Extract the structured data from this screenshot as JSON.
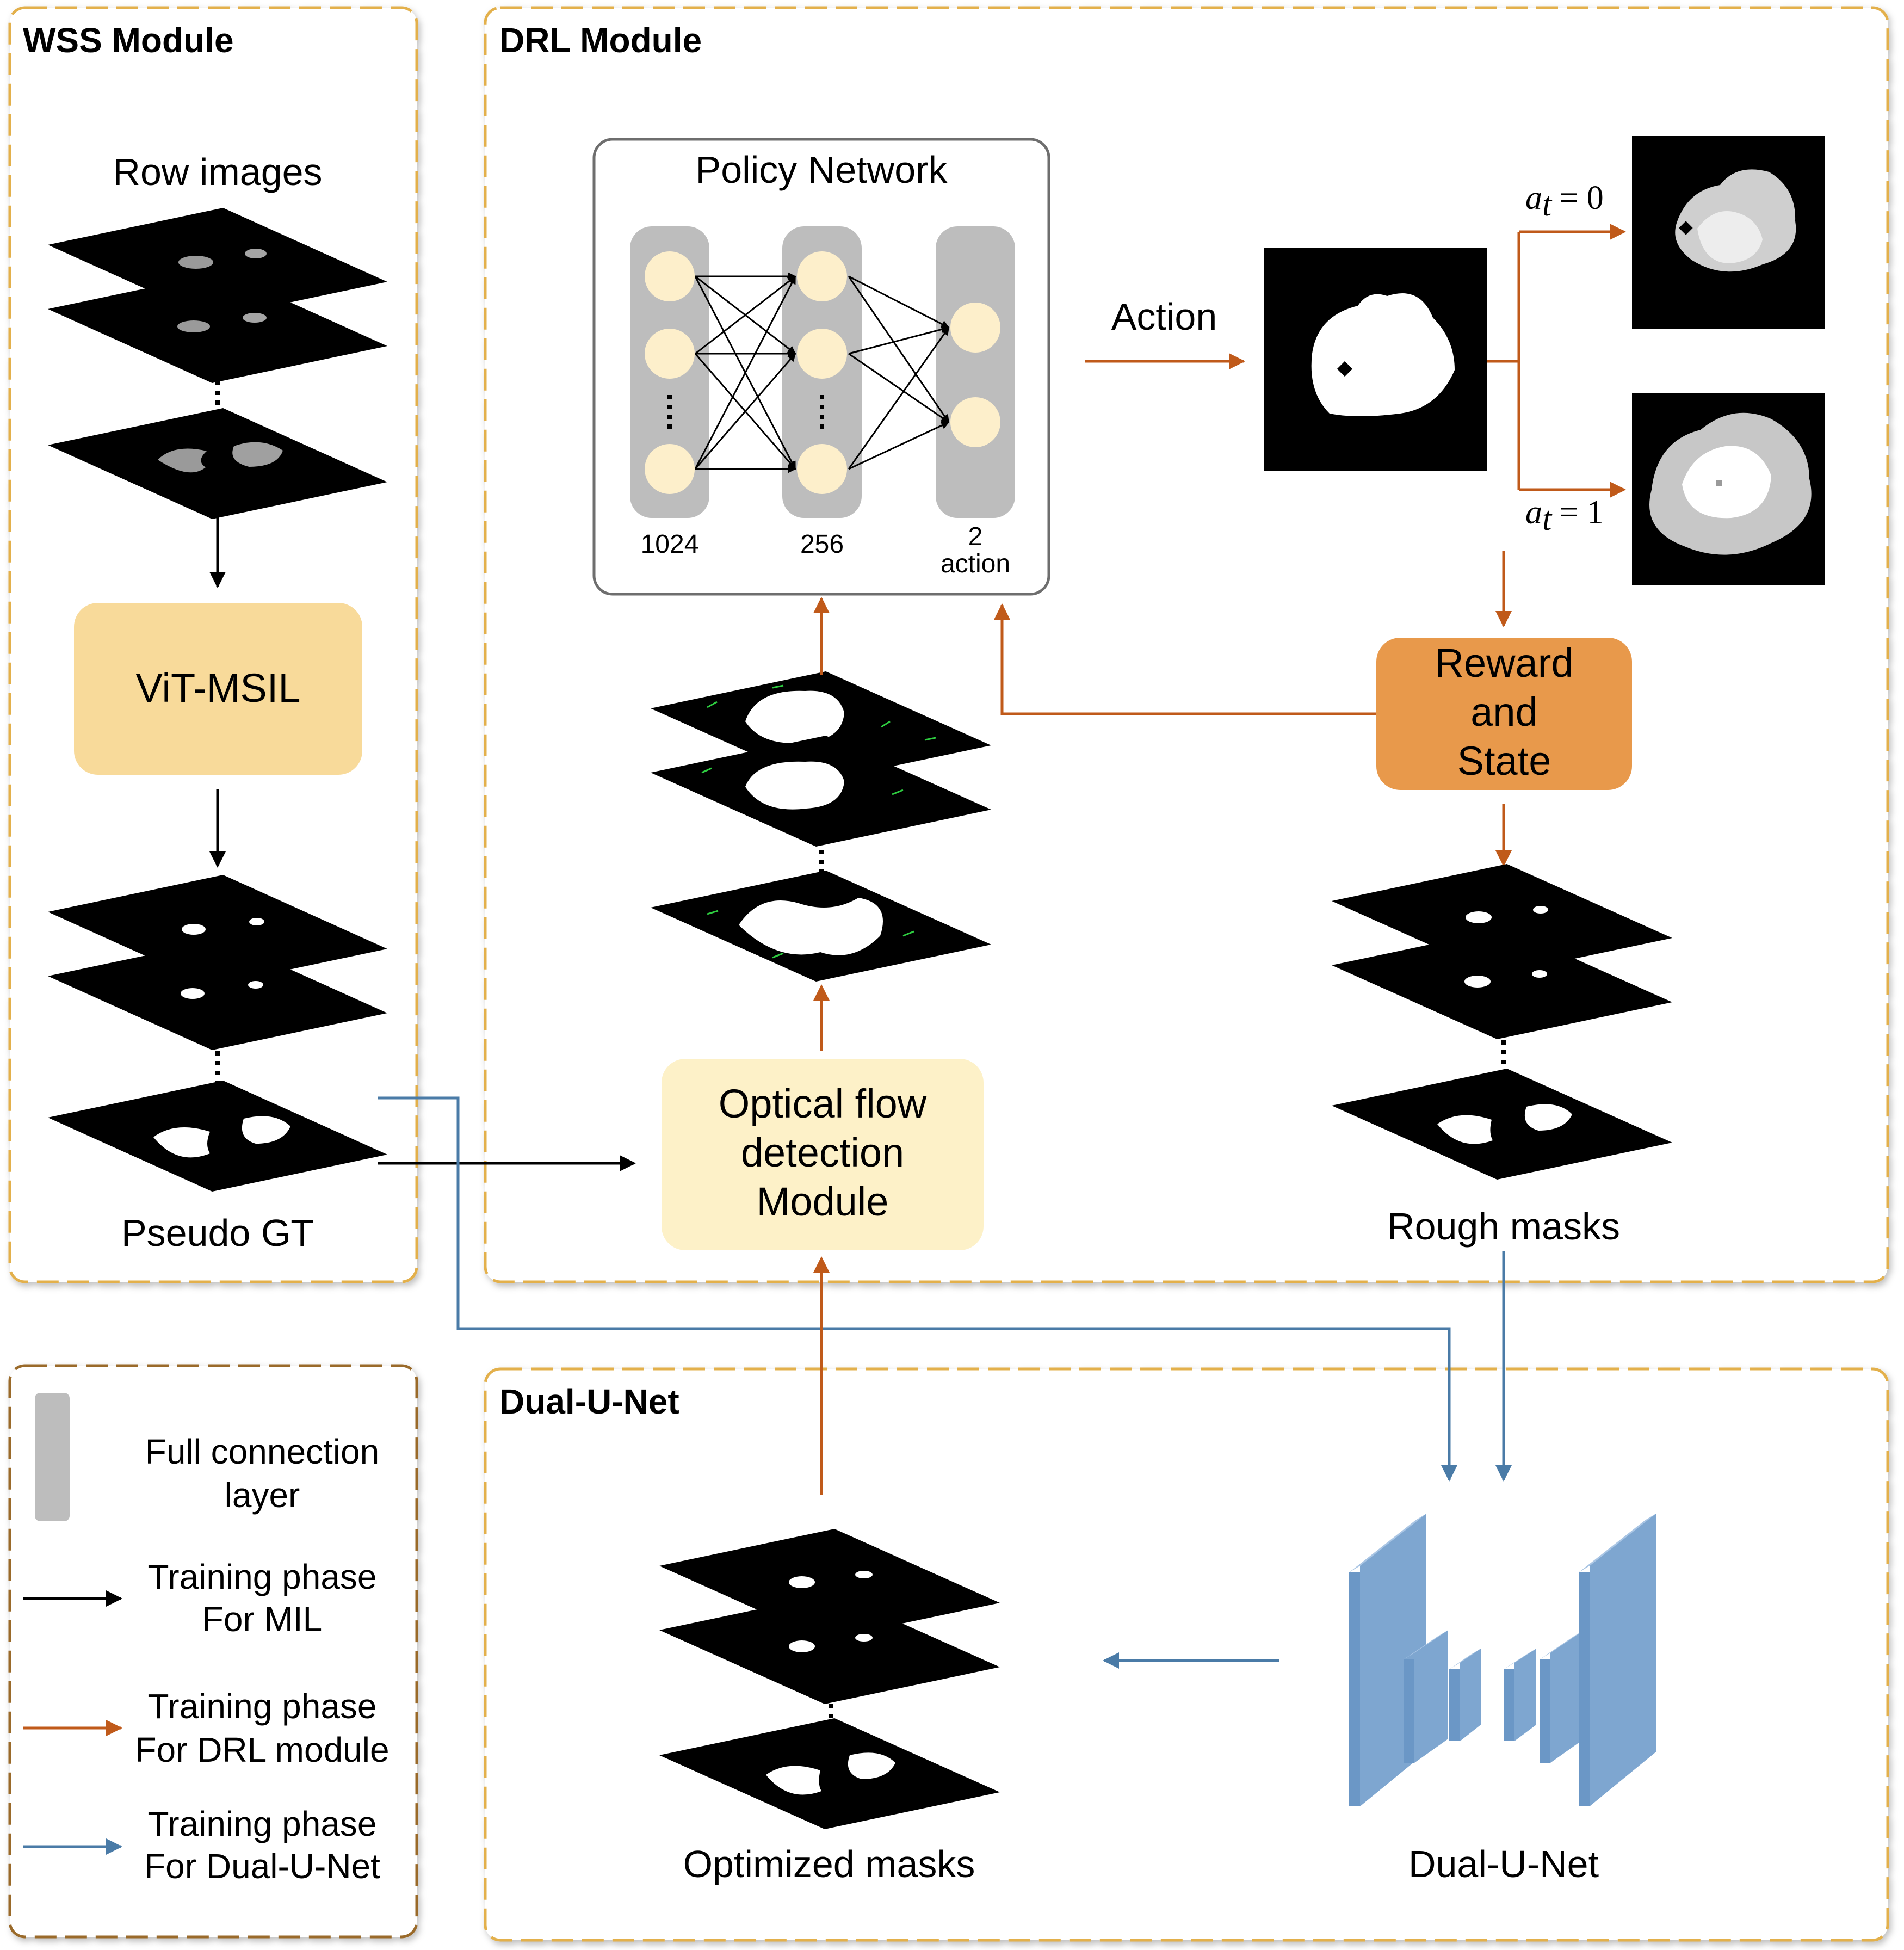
{
  "modules": {
    "wss": {
      "title": "WSS Module"
    },
    "drl": {
      "title": "DRL Module"
    },
    "dual": {
      "title": "Dual-U-Net"
    }
  },
  "wss": {
    "row_images_label": "Row images",
    "vit_label": "ViT-MSIL",
    "pseudo_gt_label": "Pseudo GT"
  },
  "policy_network": {
    "title": "Policy Network",
    "layers": [
      "1024",
      "256",
      "2",
      "action"
    ]
  },
  "action_label": "Action",
  "actions": {
    "a0": "a",
    "a0_sub": "t",
    "a0_val": "= 0",
    "a1": "a",
    "a1_sub": "t",
    "a1_val": "= 1"
  },
  "reward_state": {
    "line1": "Reward",
    "line2": "and",
    "line3": "State"
  },
  "rough_masks_label": "Rough masks",
  "optical_flow": {
    "line1": "Optical flow",
    "line2": "detection",
    "line3": "Module"
  },
  "optimized_masks_label": "Optimized masks",
  "dual_unet_label": "Dual-U-Net",
  "legend": {
    "fc_line1": "Full connection",
    "fc_line2": "layer",
    "mil_line1": "Training phase",
    "mil_line2": "For MIL",
    "drl_line1": "Training phase",
    "drl_line2": "For DRL module",
    "dual_line1": "Training phase",
    "dual_line2": "For Dual-U-Net"
  },
  "colors": {
    "frame": "#E3B04B",
    "legend_frame": "#9A6A2A",
    "black_arrow": "#000000",
    "orange_arrow": "#C05A1A",
    "blue_arrow": "#4A7BA7",
    "vit_fill": "#F8DA9A",
    "optical_fill": "#FDF1C8",
    "reward_fill": "#E8994B",
    "node_fill": "#FDEFCB",
    "fc_fill": "#BDBDBD",
    "unet_front": "#6B97C6",
    "unet_top": "#A9C5E4"
  }
}
